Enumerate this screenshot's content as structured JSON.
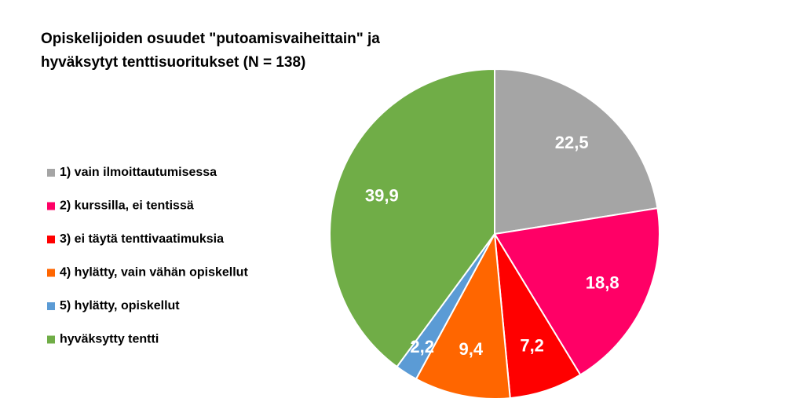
{
  "chart_data": {
    "type": "pie",
    "title": [
      "Opiskelijoiden osuudet \"putoamisvaiheittain\" ja",
      "hyväksytyt tenttisuoritukset (N = 138)"
    ],
    "categories": [
      "1) vain ilmoittautumisessa",
      "2) kurssilla, ei tentissä",
      "3) ei täytä tenttivaatimuksia",
      "4) hylätty, vain vähän opiskellut",
      "5) hylätty, opiskellut",
      "hyväksytty tentti"
    ],
    "values": [
      22.5,
      18.8,
      7.2,
      9.4,
      2.2,
      39.9
    ],
    "value_labels": [
      "22,5",
      "18,8",
      "7,2",
      "9,4",
      "2,2",
      "39,9"
    ],
    "colors": [
      "#a5a5a5",
      "#ff0066",
      "#ff0000",
      "#ff6600",
      "#5b9bd5",
      "#70ad47"
    ],
    "legend": "left"
  }
}
